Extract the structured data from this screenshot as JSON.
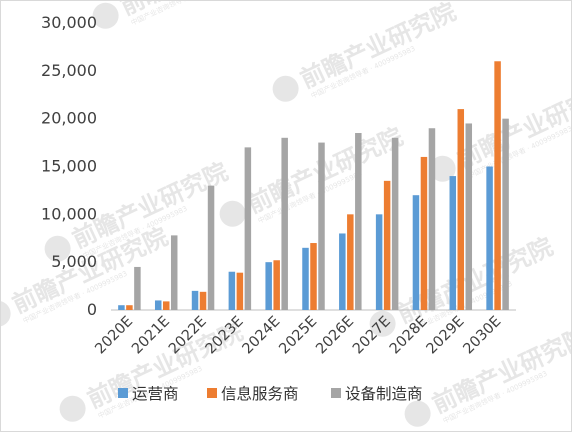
{
  "chart_data": {
    "type": "bar",
    "title": "",
    "xlabel": "",
    "ylabel": "",
    "categories": [
      "2020E",
      "2021E",
      "2022E",
      "2023E",
      "2024E",
      "2025E",
      "2026E",
      "2027E",
      "2028E",
      "2029E",
      "2030E"
    ],
    "series": [
      {
        "name": "运营商",
        "color": "#5b9bd5",
        "values": [
          500,
          1000,
          2000,
          4000,
          5000,
          6500,
          8000,
          10000,
          12000,
          14000,
          15000
        ]
      },
      {
        "name": "信息服务商",
        "color": "#ed7d31",
        "values": [
          500,
          900,
          1900,
          3900,
          5200,
          7000,
          10000,
          13500,
          16000,
          21000,
          26000
        ]
      },
      {
        "name": "设备制造商",
        "color": "#a5a5a5",
        "values": [
          4500,
          7800,
          13000,
          17000,
          18000,
          17500,
          18500,
          18000,
          19000,
          19500,
          20000
        ]
      }
    ],
    "ylim": [
      0,
      30000
    ],
    "y_ticks": [
      "0",
      "5,000",
      "10,000",
      "15,000",
      "20,000",
      "25,000",
      "30,000"
    ],
    "gridlines": false,
    "legend_position": "bottom"
  },
  "watermark": {
    "text": "前瞻产业研究院",
    "sub": "中国产业咨询领导者 · 4009995983"
  }
}
